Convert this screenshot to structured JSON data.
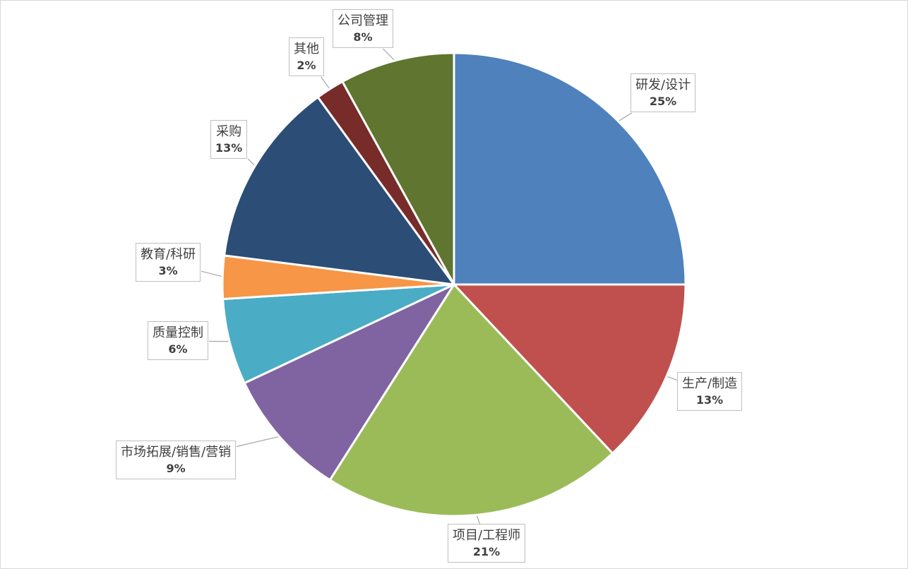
{
  "chart_data": {
    "type": "pie",
    "start_angle_deg": 0,
    "direction": "clockwise",
    "slices": [
      {
        "label": "研发/设计",
        "value": 25,
        "value_label": "25%",
        "color": "#4f81bd"
      },
      {
        "label": "生产/制造",
        "value": 13,
        "value_label": "13%",
        "color": "#c0504d"
      },
      {
        "label": "项目/工程师",
        "value": 21,
        "value_label": "21%",
        "color": "#9bbb59"
      },
      {
        "label": "市场拓展/销售/营销",
        "value": 9,
        "value_label": "9%",
        "color": "#8064a2"
      },
      {
        "label": "质量控制",
        "value": 6,
        "value_label": "6%",
        "color": "#4bacc6"
      },
      {
        "label": "教育/科研",
        "value": 3,
        "value_label": "3%",
        "color": "#f79646"
      },
      {
        "label": "采购",
        "value": 13,
        "value_label": "13%",
        "color": "#2c4d75"
      },
      {
        "label": "其他",
        "value": 2,
        "value_label": "2%",
        "color": "#772c2a"
      },
      {
        "label": "公司管理",
        "value": 8,
        "value_label": "8%",
        "color": "#5f7530"
      }
    ],
    "legend": "none",
    "data_labels": "callout"
  }
}
